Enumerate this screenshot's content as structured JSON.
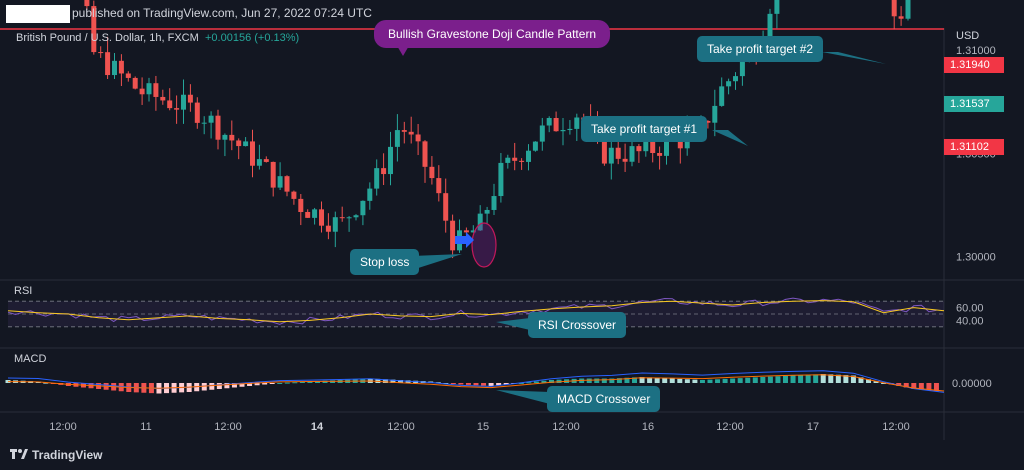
{
  "header": {
    "published_text": "published on TradingView.com, Jun 27, 2022 07:24 UTC",
    "symbol": "British Pound / U.S. Dollar, 1h, FXCM",
    "change": "+0.00156 (+0.13%)",
    "currency": "USD"
  },
  "annotations": {
    "pattern": "Bullish Gravestone Doji Candle Pattern",
    "take_profit_2": "Take profit target #2",
    "take_profit_1": "Take profit target #1",
    "stop_loss": "Stop loss",
    "rsi_crossover": "RSI Crossover",
    "macd_crossover": "MACD Crossover"
  },
  "price_labels": {
    "tp2": "1.31940",
    "current": "1.31537",
    "tp1": "1.31102"
  },
  "panels": {
    "rsi": "RSI",
    "macd": "MACD"
  },
  "footer": {
    "brand": "TradingView"
  },
  "colors": {
    "bull": "#26a69a",
    "bear": "#ef5350",
    "level": "#f23645",
    "rsi": "#7e57c2",
    "rsi_ma": "#f9c923",
    "macd": "#2962ff",
    "signal": "#ff6d00",
    "callout": "#1c7083",
    "pattern": "#7b1f8c"
  },
  "chart_data": {
    "type": "candlestick",
    "timeframe": "1h",
    "price_axis": {
      "ticks": [
        1.3,
        1.305,
        1.31,
        1.3194
      ],
      "tick_labels": [
        "1.30000",
        "1.30500",
        "1.31000",
        "1.31940"
      ]
    },
    "time_axis": {
      "tick_labels": [
        "12:00",
        "11",
        "12:00",
        "14",
        "12:00",
        "15",
        "12:00",
        "16",
        "12:00",
        "17",
        "12:00"
      ],
      "bold": [
        "14"
      ]
    },
    "horizontal_levels": [
      {
        "label": "Take profit target #2",
        "value": 1.3194
      },
      {
        "label": "Take profit target #1",
        "value": 1.31102
      }
    ],
    "current_price": 1.31537,
    "rsi": {
      "tick_labels": [
        "60.00",
        "40.00"
      ],
      "bands": [
        70,
        30
      ],
      "ticks": [
        60,
        40
      ],
      "approx_values": [
        55,
        52,
        50,
        44,
        41,
        44,
        47,
        43,
        41,
        38,
        40,
        44,
        50,
        47,
        46,
        51,
        49,
        54,
        58,
        61,
        63,
        68,
        70,
        67,
        64,
        68,
        70,
        71,
        69,
        52,
        60,
        55
      ]
    },
    "macd": {
      "tick_labels": [
        "0.00000"
      ],
      "approx_histogram": [
        1,
        0.5,
        -1,
        -2,
        -3,
        -3.5,
        -3,
        -2,
        -1,
        0,
        0.5,
        1,
        1.5,
        1,
        0.5,
        -0.5,
        -1,
        0,
        1,
        1.5,
        1.5,
        2,
        1.5,
        1,
        1.5,
        2,
        2.5,
        3,
        2.5,
        0,
        -2,
        -3
      ]
    }
  }
}
